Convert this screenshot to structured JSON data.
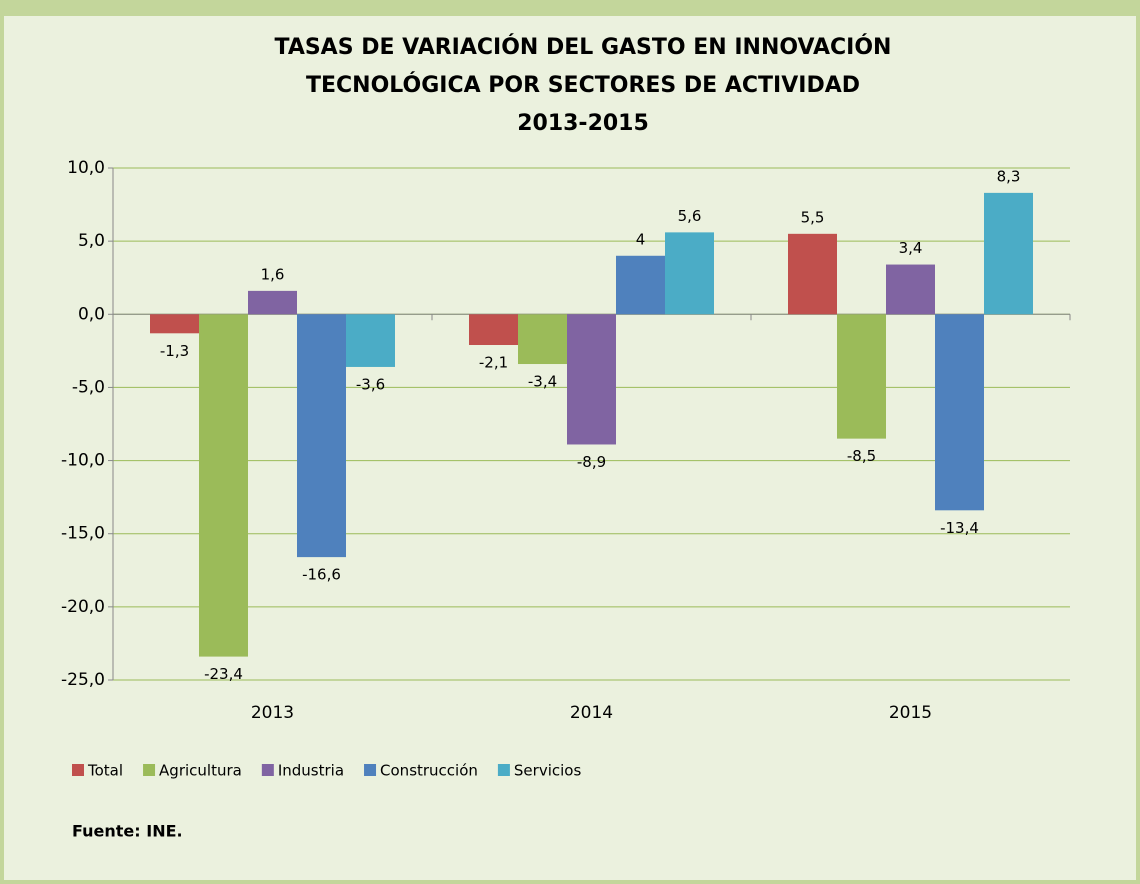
{
  "chart_data": {
    "type": "bar",
    "title": [
      "TASAS DE VARIACIÓN DEL GASTO EN INNOVACIÓN",
      "TECNOLÓGICA POR SECTORES DE ACTIVIDAD",
      "2013-2015"
    ],
    "categories": [
      "2013",
      "2014",
      "2015"
    ],
    "series": [
      {
        "name": "Total",
        "color": "#c0504d",
        "values": [
          -1.3,
          -2.1,
          5.5
        ],
        "value_labels": [
          "-1,3",
          "-2,1",
          "5,5"
        ]
      },
      {
        "name": "Agricultura",
        "color": "#9bbb59",
        "values": [
          -23.4,
          -3.4,
          -8.5
        ],
        "value_labels": [
          "-23,4",
          "-3,4",
          "-8,5"
        ]
      },
      {
        "name": "Industria",
        "color": "#8064a2",
        "values": [
          1.6,
          -8.9,
          3.4
        ],
        "value_labels": [
          "1,6",
          "-8,9",
          "3,4"
        ]
      },
      {
        "name": "Construcción",
        "color": "#4f81bd",
        "values": [
          -16.6,
          4,
          -13.4
        ],
        "value_labels": [
          "-16,6",
          "4",
          "-13,4"
        ]
      },
      {
        "name": "Servicios",
        "color": "#4bacc6",
        "values": [
          -3.6,
          5.6,
          8.3
        ],
        "value_labels": [
          "-3,6",
          "5,6",
          "8,3"
        ]
      }
    ],
    "ylim": [
      -25,
      10
    ],
    "yticks": [
      {
        "value": -25,
        "label": "-25,0"
      },
      {
        "value": -20,
        "label": "-20,0"
      },
      {
        "value": -15,
        "label": "-15,0"
      },
      {
        "value": -10,
        "label": "-10,0"
      },
      {
        "value": -5,
        "label": "-5,0"
      },
      {
        "value": 0,
        "label": "0,0"
      },
      {
        "value": 5,
        "label": "5,0"
      },
      {
        "value": 10,
        "label": "10,0"
      }
    ],
    "grid": true,
    "legend": "bottom",
    "source": "Fuente: INE."
  }
}
